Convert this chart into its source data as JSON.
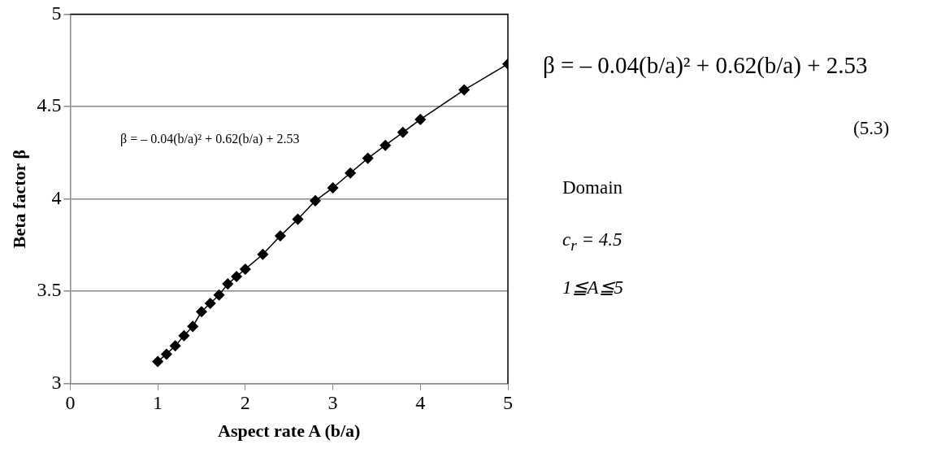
{
  "chart_data": {
    "type": "line",
    "xlabel": "Aspect rate A (b/a)",
    "ylabel": "Beta factor β",
    "x": [
      1,
      1.1,
      1.2,
      1.3,
      1.4,
      1.5,
      1.6,
      1.7,
      1.8,
      1.9,
      2,
      2.2,
      2.4,
      2.6,
      2.8,
      3,
      3.2,
      3.4,
      3.6,
      3.8,
      4,
      4.5,
      5
    ],
    "series": [
      {
        "color": "#000000",
        "values": [
          3.12,
          3.16,
          3.205,
          3.26,
          3.31,
          3.39,
          3.435,
          3.48,
          3.54,
          3.58,
          3.62,
          3.7,
          3.8,
          3.89,
          3.99,
          4.06,
          4.14,
          4.22,
          4.29,
          4.36,
          4.43,
          4.59,
          4.73
        ]
      }
    ],
    "xlim": [
      0,
      5
    ],
    "xticks": [
      0,
      1,
      2,
      3,
      4,
      5
    ],
    "ylim": [
      3,
      5
    ],
    "yticks": [
      3,
      3.5,
      4,
      4.5,
      5
    ],
    "grid": "y",
    "legend": false,
    "marker": "diamond",
    "line_style": "solid",
    "annotations": [
      "β = – 0.04(b/a)² + 0.62(b/a) + 2.53",
      "β = – 0.04(b/a)² + 0.62(b/a) + 2.53",
      "(5.3)",
      "Domain",
      "c$_{r}$ = 4.5",
      "1≦A≦5"
    ]
  }
}
